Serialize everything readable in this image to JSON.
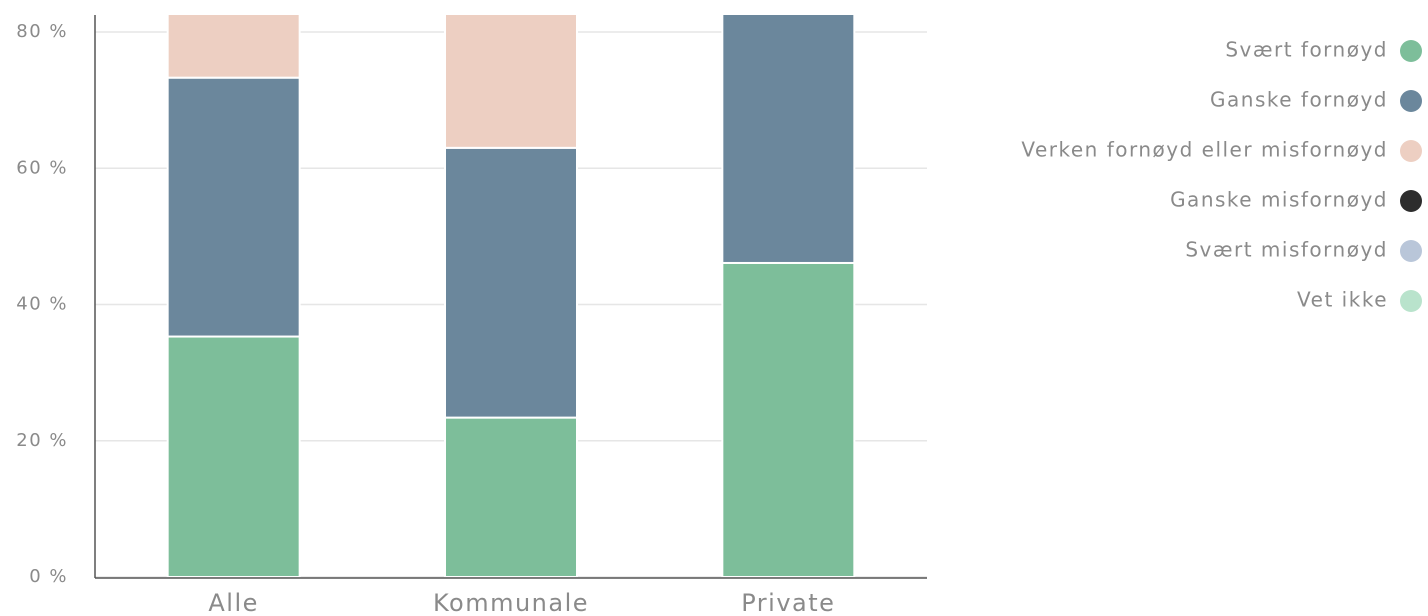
{
  "chart_data": {
    "type": "stacked_bar",
    "categories": [
      "Alle",
      "Kommunale",
      "Private"
    ],
    "series": [
      {
        "name": "Svært fornøyd",
        "color": "#7dbe9a",
        "values": [
          35.3,
          23.4,
          46.1
        ]
      },
      {
        "name": "Ganske fornøyd",
        "color": "#6b879c",
        "values": [
          38.0,
          39.6,
          40.0
        ]
      },
      {
        "name": "Verken fornøyd eller misfornøyd",
        "color": "#edcfc2",
        "values": [
          15.0,
          20.0,
          null
        ]
      },
      {
        "name": "Ganske misfornøyd",
        "color": "#2d2d2d",
        "values": [
          null,
          null,
          null
        ]
      },
      {
        "name": "Svært misfornøyd",
        "color": "#b9c6d9",
        "values": [
          null,
          null,
          null
        ]
      },
      {
        "name": "Vet ikke",
        "color": "#b9e3cc",
        "values": [
          null,
          null,
          null
        ]
      }
    ],
    "ylim": [
      0,
      82.5
    ],
    "yticks": [
      {
        "value": 0,
        "label": "0 %"
      },
      {
        "value": 20,
        "label": "20 %"
      },
      {
        "value": 40,
        "label": "40 %"
      },
      {
        "value": 60,
        "label": "60 %"
      },
      {
        "value": 80,
        "label": "80 %"
      }
    ],
    "grid": true
  }
}
